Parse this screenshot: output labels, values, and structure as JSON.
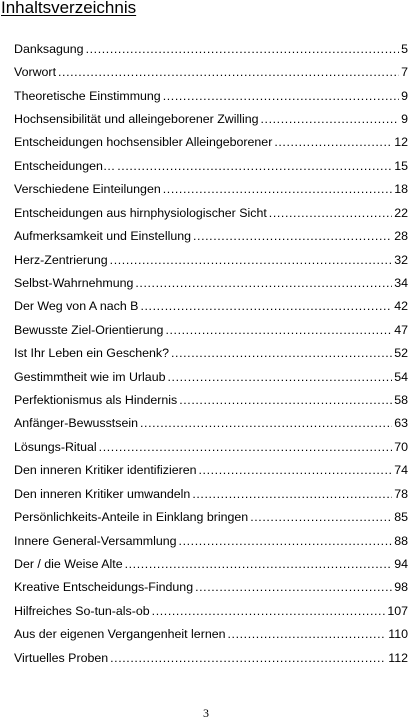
{
  "document": {
    "title": "Inhaltsverzeichnis",
    "page_number": "3"
  },
  "toc": {
    "entries": [
      {
        "title": "Danksagung",
        "page": "5"
      },
      {
        "title": "Vorwort",
        "page": "7"
      },
      {
        "title": "Theoretische Einstimmung",
        "page": "9"
      },
      {
        "title": "Hochsensibilität und alleingeborener Zwilling",
        "page": "9"
      },
      {
        "title": "Entscheidungen hochsensibler Alleingeborener",
        "page": "12"
      },
      {
        "title": "Entscheidungen…",
        "page": "15"
      },
      {
        "title": "Verschiedene Einteilungen",
        "page": "18"
      },
      {
        "title": "Entscheidungen aus hirnphysiologischer Sicht",
        "page": "22"
      },
      {
        "title": "Aufmerksamkeit und Einstellung",
        "page": "28"
      },
      {
        "title": "Herz-Zentrierung",
        "page": "32"
      },
      {
        "title": "Selbst-Wahrnehmung",
        "page": "34"
      },
      {
        "title": "Der Weg von A nach B",
        "page": "42"
      },
      {
        "title": "Bewusste Ziel-Orientierung",
        "page": "47"
      },
      {
        "title": "Ist Ihr Leben ein Geschenk?",
        "page": "52"
      },
      {
        "title": "Gestimmtheit wie im Urlaub",
        "page": "54"
      },
      {
        "title": "Perfektionismus als Hindernis",
        "page": "58"
      },
      {
        "title": "Anfänger-Bewusstsein",
        "page": "63"
      },
      {
        "title": "Lösungs-Ritual",
        "page": "70"
      },
      {
        "title": "Den inneren Kritiker identifizieren",
        "page": "74"
      },
      {
        "title": "Den inneren Kritiker umwandeln",
        "page": "78"
      },
      {
        "title": "Persönlichkeits-Anteile in Einklang bringen",
        "page": "85"
      },
      {
        "title": "Innere General-Versammlung",
        "page": "88"
      },
      {
        "title": "Der / die Weise Alte",
        "page": "94"
      },
      {
        "title": "Kreative Entscheidungs-Findung",
        "page": "98"
      },
      {
        "title": "Hilfreiches So-tun-als-ob",
        "page": "107"
      },
      {
        "title": "Aus der eigenen Vergangenheit lernen",
        "page": "110"
      },
      {
        "title": "Virtuelles Proben",
        "page": "112"
      }
    ]
  }
}
